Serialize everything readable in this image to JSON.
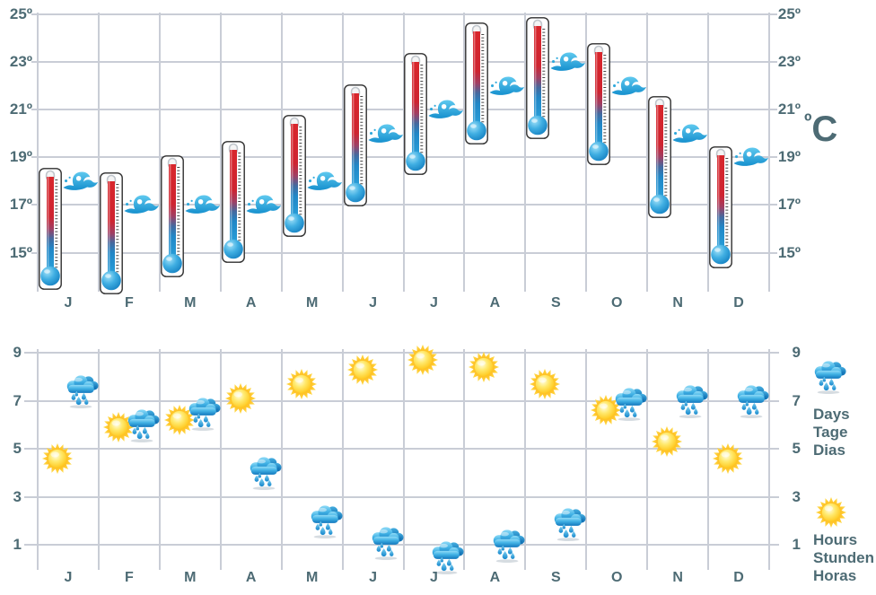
{
  "unit": {
    "degree": "º",
    "letter": "C"
  },
  "months": [
    "J",
    "F",
    "M",
    "A",
    "M",
    "J",
    "J",
    "A",
    "S",
    "O",
    "N",
    "D"
  ],
  "top_axis_ticks": [
    {
      "value": 25,
      "label": "25º"
    },
    {
      "value": 23,
      "label": "23º"
    },
    {
      "value": 21,
      "label": "21º"
    },
    {
      "value": 19,
      "label": "19º"
    },
    {
      "value": 17,
      "label": "17º"
    },
    {
      "value": 15,
      "label": "15º"
    }
  ],
  "bottom_axis_ticks": [
    {
      "value": 9,
      "label": "9"
    },
    {
      "value": 7,
      "label": "7"
    },
    {
      "value": 5,
      "label": "5"
    },
    {
      "value": 3,
      "label": "3"
    },
    {
      "value": 1,
      "label": "1"
    }
  ],
  "legend": {
    "days": {
      "icon": "rain-cloud-icon",
      "lines": [
        "Days",
        "Tage",
        "Dias"
      ]
    },
    "hours": {
      "icon": "sun-icon",
      "lines": [
        "Hours",
        "Stunden",
        "Horas"
      ]
    }
  },
  "colors": {
    "axis_text": "#4d6b74",
    "gridline": "#c9cdd6",
    "wave_blue": "#2fa9dc",
    "sun_yellow": "#ffcb24",
    "cloud_blue": "#2196d3",
    "thermometer_red": "#d8262c",
    "thermometer_blue": "#2ba6de"
  },
  "chart_data": [
    {
      "type": "scatter",
      "subtype": "climate-thermometer-panel",
      "title": "",
      "categories": [
        "J",
        "F",
        "M",
        "A",
        "M",
        "J",
        "J",
        "A",
        "S",
        "O",
        "N",
        "D"
      ],
      "series": [
        {
          "name": "max-air-temperature-c",
          "icon": "thermometer-tip",
          "values": [
            18.2,
            18.0,
            18.7,
            19.3,
            20.4,
            21.7,
            23.0,
            24.3,
            24.5,
            23.4,
            21.2,
            19.1
          ]
        },
        {
          "name": "min-air-temperature-c",
          "icon": "thermometer-bulb",
          "values": [
            14.1,
            13.9,
            14.6,
            15.2,
            16.3,
            17.6,
            18.9,
            20.2,
            20.4,
            19.3,
            17.1,
            15.0
          ]
        },
        {
          "name": "sea-temperature-c",
          "icon": "wave",
          "values": [
            18,
            17,
            17,
            17,
            18,
            20,
            21,
            22,
            23,
            22,
            20,
            19
          ]
        }
      ],
      "xlabel": "",
      "ylabel": "ºC",
      "yticks": [
        25,
        23,
        21,
        19,
        17,
        15
      ],
      "ylim": [
        13.4,
        25
      ],
      "grid": true,
      "legend_position": "right"
    },
    {
      "type": "scatter",
      "subtype": "climate-pictogram-panel",
      "title": "",
      "categories": [
        "J",
        "F",
        "M",
        "A",
        "M",
        "J",
        "J",
        "A",
        "S",
        "O",
        "N",
        "D"
      ],
      "series": [
        {
          "name": "rain-days",
          "icon": "rain-cloud",
          "values": [
            7.6,
            6.2,
            6.7,
            4.2,
            2.2,
            1.3,
            0.7,
            1.2,
            2.1,
            7.1,
            7.2,
            7.2
          ]
        },
        {
          "name": "sunshine-hours",
          "icon": "sun",
          "values": [
            4.6,
            5.9,
            6.2,
            7.1,
            7.7,
            8.3,
            8.7,
            8.4,
            7.7,
            6.6,
            5.3,
            4.6
          ]
        }
      ],
      "xlabel": "",
      "ylabel": "",
      "yticks": [
        9,
        7,
        5,
        3,
        1
      ],
      "ylim": [
        0,
        9.8
      ],
      "grid": true,
      "legend_position": "right"
    }
  ]
}
